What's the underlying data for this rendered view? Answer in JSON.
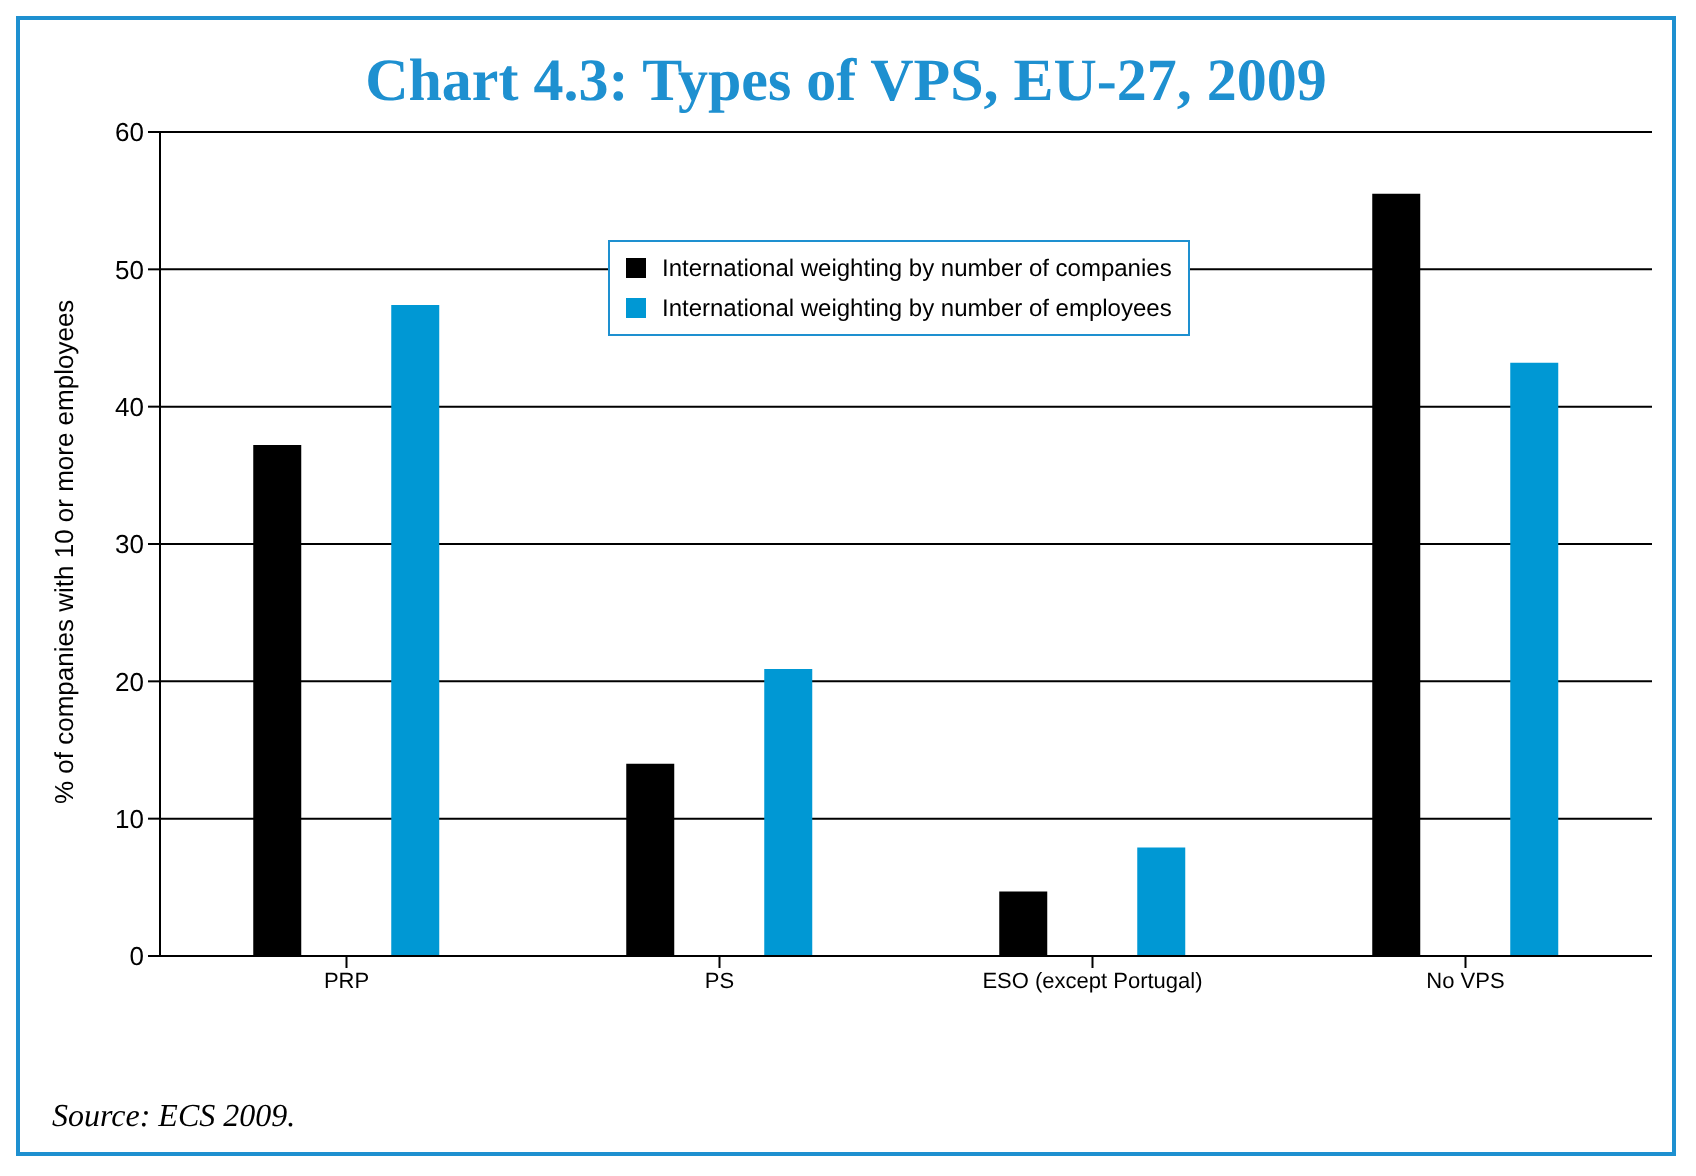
{
  "chart_data": {
    "type": "bar",
    "title": "Chart 4.3: Types of VPS, EU-27, 2009",
    "ylabel": "% of companies with 10 or more employees",
    "categories": [
      "PRP",
      "PS",
      "ESO (except Portugal)",
      "No VPS"
    ],
    "series": [
      {
        "name": "International weighting by number of companies",
        "color": "#000000",
        "values": [
          37.2,
          14.0,
          4.7,
          55.5
        ]
      },
      {
        "name": "International weighting by number of employees",
        "color": "#0098d4",
        "values": [
          47.4,
          20.9,
          7.9,
          43.2
        ]
      }
    ],
    "ylim": [
      0,
      60
    ],
    "yticks": [
      0,
      10,
      20,
      30,
      40,
      50,
      60
    ],
    "grid": "y",
    "legend": "top",
    "annotations": [
      "Source: ECS 2009."
    ]
  }
}
